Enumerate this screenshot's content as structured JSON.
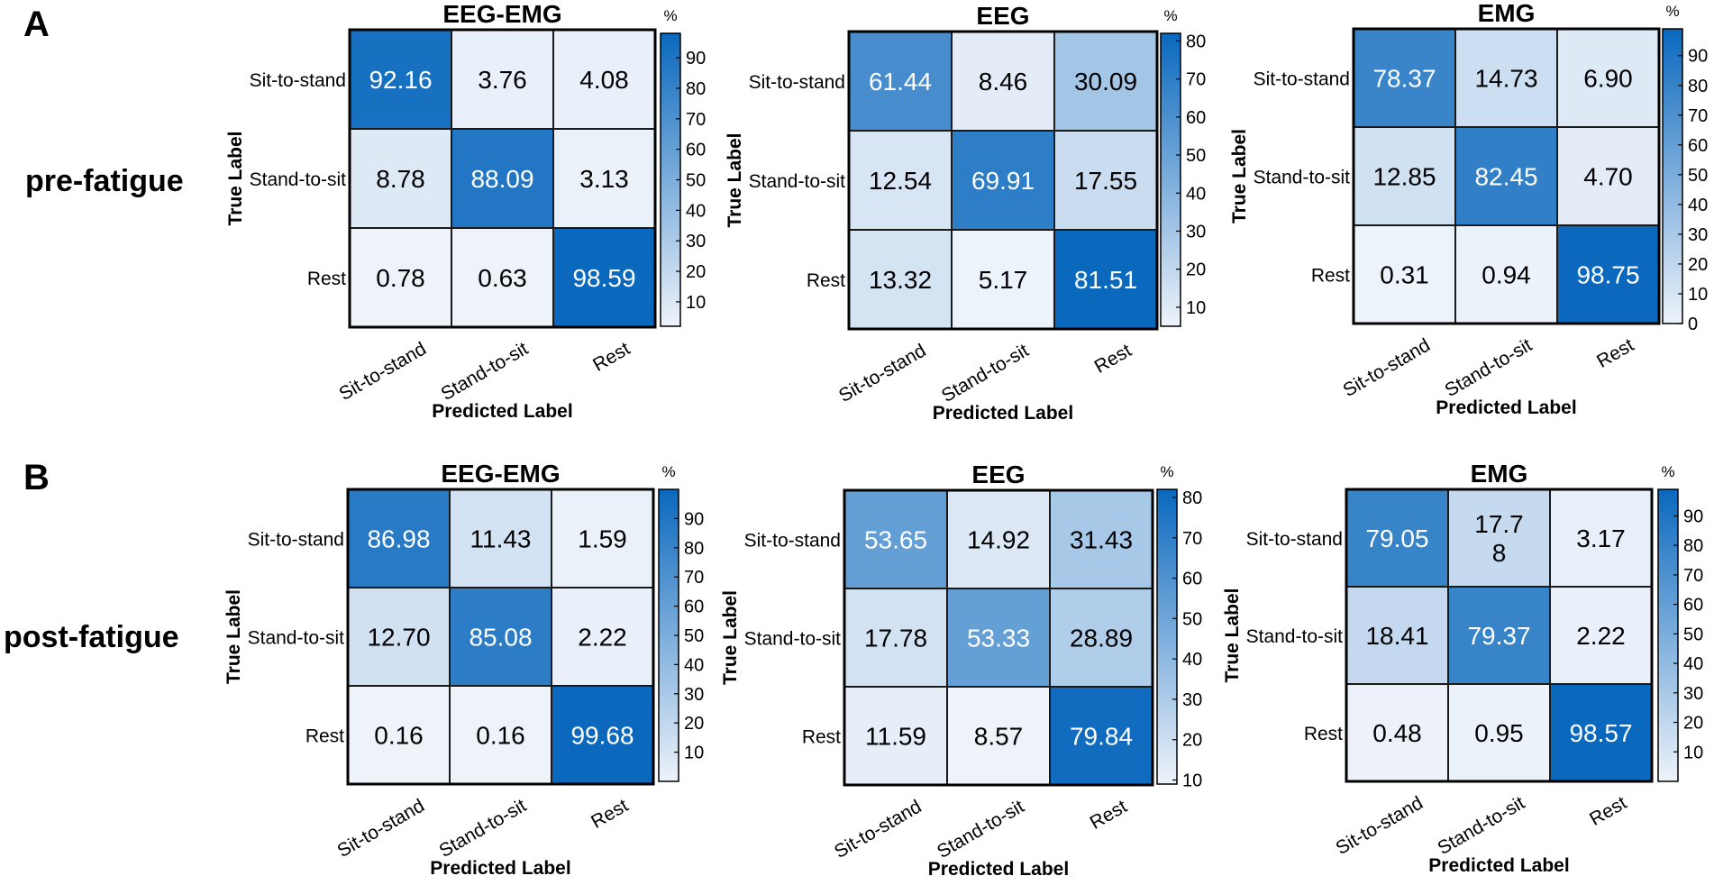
{
  "panels": [
    {
      "letter": "A",
      "condition": "pre-fatigue"
    },
    {
      "letter": "B",
      "condition": "post-fatigue"
    }
  ],
  "common": {
    "row_labels": [
      "Sit-to-stand",
      "Stand-to-sit",
      "Rest"
    ],
    "col_labels": [
      "Sit-to-stand",
      "Stand-to-sit",
      "Rest"
    ],
    "xlabel": "Predicted Label",
    "ylabel": "True Label",
    "colorbar_unit": "%"
  },
  "colormap": {
    "low": "#eef3fa",
    "high": "#0a68bd",
    "text_dark": "#000000",
    "text_light": "#ffffff"
  },
  "chart_data": [
    {
      "type": "heatmap",
      "panel": "A",
      "title": "EEG-EMG",
      "values": [
        [
          92.16,
          3.76,
          4.08
        ],
        [
          8.78,
          88.09,
          3.13
        ],
        [
          0.78,
          0.63,
          98.59
        ]
      ],
      "cell_text": [
        [
          "92.16",
          "3.76",
          "4.08"
        ],
        [
          "8.78",
          "88.09",
          "3.13"
        ],
        [
          "0.78",
          "0.63",
          "98.59"
        ]
      ],
      "clim": [
        2,
        98
      ],
      "colorbar_ticks": [
        10,
        20,
        30,
        40,
        50,
        60,
        70,
        80,
        90
      ]
    },
    {
      "type": "heatmap",
      "panel": "A",
      "title": "EEG",
      "values": [
        [
          61.44,
          8.46,
          30.09
        ],
        [
          12.54,
          69.91,
          17.55
        ],
        [
          13.32,
          5.17,
          81.51
        ]
      ],
      "cell_text": [
        [
          "61.44",
          "8.46",
          "30.09"
        ],
        [
          "12.54",
          "69.91",
          "17.55"
        ],
        [
          "13.32",
          "5.17",
          "81.51"
        ]
      ],
      "clim": [
        5,
        82
      ],
      "colorbar_ticks": [
        10,
        20,
        30,
        40,
        50,
        60,
        70,
        80
      ]
    },
    {
      "type": "heatmap",
      "panel": "A",
      "title": "EMG",
      "values": [
        [
          78.37,
          14.73,
          6.9
        ],
        [
          12.85,
          82.45,
          4.7
        ],
        [
          0.31,
          0.94,
          98.75
        ]
      ],
      "cell_text": [
        [
          "78.37",
          "14.73",
          "6.90"
        ],
        [
          "12.85",
          "82.45",
          "4.70"
        ],
        [
          "0.31",
          "0.94",
          "98.75"
        ]
      ],
      "clim": [
        0,
        99
      ],
      "colorbar_ticks": [
        0,
        10,
        20,
        30,
        40,
        50,
        60,
        70,
        80,
        90
      ]
    },
    {
      "type": "heatmap",
      "panel": "B",
      "title": "EEG-EMG",
      "values": [
        [
          86.98,
          11.43,
          1.59
        ],
        [
          12.7,
          85.08,
          2.22
        ],
        [
          0.16,
          0.16,
          99.68
        ]
      ],
      "cell_text": [
        [
          "86.98",
          "11.43",
          "1.59"
        ],
        [
          "12.70",
          "85.08",
          "2.22"
        ],
        [
          "0.16",
          "0.16",
          "99.68"
        ]
      ],
      "clim": [
        0,
        100
      ],
      "colorbar_ticks": [
        10,
        20,
        30,
        40,
        50,
        60,
        70,
        80,
        90
      ]
    },
    {
      "type": "heatmap",
      "panel": "B",
      "title": "EEG",
      "values": [
        [
          53.65,
          14.92,
          31.43
        ],
        [
          17.78,
          53.33,
          28.89
        ],
        [
          11.59,
          8.57,
          79.84
        ]
      ],
      "cell_text": [
        [
          "53.65",
          "14.92",
          "31.43"
        ],
        [
          "17.78",
          "53.33",
          "28.89"
        ],
        [
          "11.59",
          "8.57",
          "79.84"
        ]
      ],
      "clim": [
        9,
        82
      ],
      "colorbar_ticks": [
        10,
        20,
        30,
        40,
        50,
        60,
        70,
        80
      ]
    },
    {
      "type": "heatmap",
      "panel": "B",
      "title": "EMG",
      "values": [
        [
          79.05,
          17.78,
          3.17
        ],
        [
          18.41,
          79.37,
          2.22
        ],
        [
          0.48,
          0.95,
          98.57
        ]
      ],
      "cell_text": [
        [
          "79.05",
          "17.7\n8",
          "3.17"
        ],
        [
          "18.41",
          "79.37",
          "2.22"
        ],
        [
          "0.48",
          "0.95",
          "98.57"
        ]
      ],
      "clim": [
        0,
        99
      ],
      "colorbar_ticks": [
        10,
        20,
        30,
        40,
        50,
        60,
        70,
        80,
        90
      ]
    }
  ]
}
